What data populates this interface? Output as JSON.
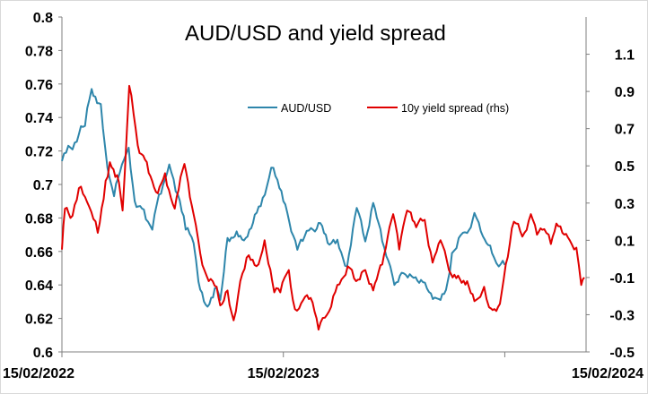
{
  "chart_data": {
    "type": "line",
    "title": "AUD/USD and yield spread",
    "colors": {
      "aud": "#2E86AB",
      "spread": "#E00000"
    },
    "legend": {
      "placement": "top-right",
      "entries": [
        "AUD/USD",
        "10y yield spread (rhs)"
      ]
    },
    "x_ticks": [
      "15/02/2022",
      "15/02/2023",
      "15/02/2024"
    ],
    "y_left": {
      "range": [
        0.6,
        0.8
      ],
      "ticks": [
        "0.8",
        "0.78",
        "0.76",
        "0.74",
        "0.72",
        "0.7",
        "0.68",
        "0.66",
        "0.64",
        "0.62",
        "0.6"
      ]
    },
    "y_right": {
      "range": [
        -0.5,
        1.3
      ],
      "ticks": [
        "1.1",
        "0.9",
        "0.7",
        "0.5",
        "0.3",
        "0.1",
        "-0.1",
        "-0.3",
        "-0.5"
      ]
    },
    "grid": false,
    "series": [
      {
        "name": "AUD/USD",
        "axis": "left",
        "points": [
          [
            "2022-02-15",
            0.714
          ],
          [
            "2022-03-01",
            0.722
          ],
          [
            "2022-03-15",
            0.73
          ],
          [
            "2022-03-25",
            0.735
          ],
          [
            "2022-04-05",
            0.757
          ],
          [
            "2022-04-20",
            0.748
          ],
          [
            "2022-05-01",
            0.71
          ],
          [
            "2022-05-12",
            0.693
          ],
          [
            "2022-05-25",
            0.712
          ],
          [
            "2022-06-05",
            0.722
          ],
          [
            "2022-06-15",
            0.69
          ],
          [
            "2022-06-30",
            0.685
          ],
          [
            "2022-07-14",
            0.673
          ],
          [
            "2022-07-25",
            0.694
          ],
          [
            "2022-08-11",
            0.712
          ],
          [
            "2022-08-25",
            0.694
          ],
          [
            "2022-09-07",
            0.673
          ],
          [
            "2022-09-20",
            0.665
          ],
          [
            "2022-09-28",
            0.642
          ],
          [
            "2022-10-13",
            0.627
          ],
          [
            "2022-10-25",
            0.638
          ],
          [
            "2022-11-03",
            0.631
          ],
          [
            "2022-11-15",
            0.668
          ],
          [
            "2022-11-30",
            0.672
          ],
          [
            "2022-12-15",
            0.668
          ],
          [
            "2022-12-30",
            0.682
          ],
          [
            "2023-01-12",
            0.692
          ],
          [
            "2023-01-26",
            0.71
          ],
          [
            "2023-02-02",
            0.705
          ],
          [
            "2023-02-15",
            0.69
          ],
          [
            "2023-02-28",
            0.672
          ],
          [
            "2023-03-10",
            0.661
          ],
          [
            "2023-03-22",
            0.669
          ],
          [
            "2023-04-05",
            0.673
          ],
          [
            "2023-04-14",
            0.677
          ],
          [
            "2023-05-02",
            0.664
          ],
          [
            "2023-05-15",
            0.667
          ],
          [
            "2023-05-31",
            0.651
          ],
          [
            "2023-06-16",
            0.686
          ],
          [
            "2023-06-30",
            0.666
          ],
          [
            "2023-07-13",
            0.689
          ],
          [
            "2023-07-28",
            0.666
          ],
          [
            "2023-08-17",
            0.64
          ],
          [
            "2023-09-01",
            0.647
          ],
          [
            "2023-09-15",
            0.645
          ],
          [
            "2023-09-30",
            0.643
          ],
          [
            "2023-10-26",
            0.632
          ],
          [
            "2023-11-10",
            0.637
          ],
          [
            "2023-11-20",
            0.659
          ],
          [
            "2023-12-01",
            0.668
          ],
          [
            "2023-12-15",
            0.671
          ],
          [
            "2023-12-27",
            0.683
          ],
          [
            "2024-01-10",
            0.669
          ],
          [
            "2024-01-25",
            0.659
          ],
          [
            "2024-02-05",
            0.651
          ],
          [
            "2024-02-15",
            0.652
          ]
        ]
      },
      {
        "name": "10y yield spread (rhs)",
        "axis": "right",
        "points": [
          [
            "2022-02-15",
            0.05
          ],
          [
            "2022-02-20",
            0.27
          ],
          [
            "2022-03-01",
            0.22
          ],
          [
            "2022-03-15",
            0.38
          ],
          [
            "2022-04-01",
            0.28
          ],
          [
            "2022-04-15",
            0.14
          ],
          [
            "2022-04-28",
            0.42
          ],
          [
            "2022-05-05",
            0.52
          ],
          [
            "2022-05-17",
            0.45
          ],
          [
            "2022-05-26",
            0.26
          ],
          [
            "2022-06-06",
            0.93
          ],
          [
            "2022-06-20",
            0.61
          ],
          [
            "2022-07-05",
            0.52
          ],
          [
            "2022-07-20",
            0.36
          ],
          [
            "2022-08-04",
            0.46
          ],
          [
            "2022-08-20",
            0.27
          ],
          [
            "2022-09-05",
            0.51
          ],
          [
            "2022-09-20",
            0.24
          ],
          [
            "2022-10-01",
            0.03
          ],
          [
            "2022-10-15",
            -0.12
          ],
          [
            "2022-10-28",
            -0.15
          ],
          [
            "2022-11-03",
            -0.25
          ],
          [
            "2022-11-15",
            -0.17
          ],
          [
            "2022-11-25",
            -0.33
          ],
          [
            "2022-12-06",
            -0.12
          ],
          [
            "2022-12-20",
            0.02
          ],
          [
            "2023-01-05",
            -0.03
          ],
          [
            "2023-01-15",
            0.1
          ],
          [
            "2023-01-31",
            -0.18
          ],
          [
            "2023-02-10",
            -0.18
          ],
          [
            "2023-02-24",
            -0.06
          ],
          [
            "2023-03-06",
            -0.27
          ],
          [
            "2023-03-20",
            -0.22
          ],
          [
            "2023-04-01",
            -0.21
          ],
          [
            "2023-04-14",
            -0.38
          ],
          [
            "2023-04-28",
            -0.3
          ],
          [
            "2023-05-15",
            -0.14
          ],
          [
            "2023-06-01",
            -0.04
          ],
          [
            "2023-06-15",
            -0.12
          ],
          [
            "2023-06-30",
            -0.06
          ],
          [
            "2023-07-13",
            -0.17
          ],
          [
            "2023-07-28",
            -0.03
          ],
          [
            "2023-08-15",
            0.24
          ],
          [
            "2023-08-25",
            0.05
          ],
          [
            "2023-09-07",
            0.26
          ],
          [
            "2023-09-22",
            0.17
          ],
          [
            "2023-10-06",
            0.21
          ],
          [
            "2023-10-19",
            -0.02
          ],
          [
            "2023-11-01",
            0.1
          ],
          [
            "2023-11-15",
            -0.06
          ],
          [
            "2023-11-30",
            -0.09
          ],
          [
            "2023-12-15",
            -0.12
          ],
          [
            "2023-12-30",
            -0.22
          ],
          [
            "2024-01-12",
            -0.15
          ],
          [
            "2024-01-20",
            -0.26
          ],
          [
            "2024-02-01",
            -0.28
          ],
          [
            "2024-02-10",
            -0.18
          ],
          [
            "2024-02-20",
            0.01
          ],
          [
            "2024-03-01",
            0.2
          ],
          [
            "2024-03-15",
            0.12
          ],
          [
            "2024-03-29",
            0.24
          ],
          [
            "2024-04-08",
            0.13
          ],
          [
            "2024-04-20",
            0.16
          ],
          [
            "2024-05-01",
            0.08
          ],
          [
            "2024-05-10",
            0.19
          ],
          [
            "2024-05-20",
            0.14
          ],
          [
            "2024-06-01",
            0.1
          ],
          [
            "2024-06-12",
            0.06
          ],
          [
            "2024-06-20",
            -0.14
          ],
          [
            "2024-06-25",
            -0.1
          ]
        ]
      }
    ]
  }
}
